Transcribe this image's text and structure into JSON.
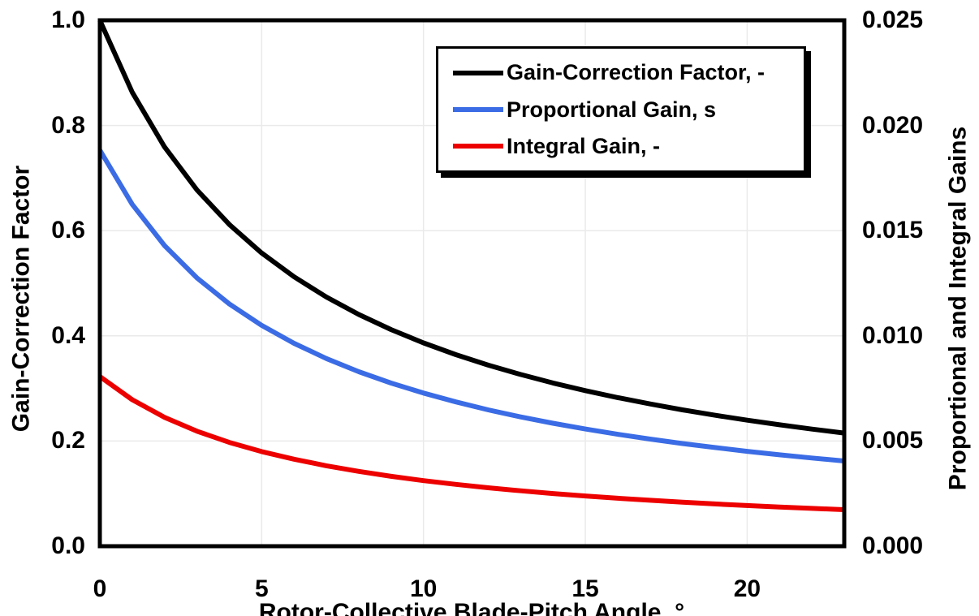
{
  "chart_data": {
    "type": "line",
    "title": "",
    "x_label": "Rotor-Collective Blade-Pitch Angle, °",
    "y_left_label": "Gain-Correction Factor",
    "y_right_label": "Proportional and Integral Gains",
    "xlim": [
      0,
      23
    ],
    "left_ylim": [
      0.0,
      1.0
    ],
    "right_ylim": [
      0.0,
      0.025
    ],
    "grid": true,
    "legend_position": "top-right",
    "x_ticks": {
      "values": [
        0,
        5,
        10,
        15,
        20
      ],
      "labels": [
        "0",
        "5",
        "10",
        "15",
        "20"
      ]
    },
    "left_ticks": {
      "values": [
        0.0,
        0.2,
        0.4,
        0.6,
        0.8,
        1.0
      ],
      "labels": [
        "0.0",
        "0.2",
        "0.4",
        "0.6",
        "0.8",
        "1.0"
      ]
    },
    "right_ticks": {
      "values": [
        0.0,
        0.005,
        0.01,
        0.015,
        0.02,
        0.025
      ],
      "labels": [
        "0.000",
        "0.005",
        "0.010",
        "0.015",
        "0.020",
        "0.025"
      ]
    },
    "x": [
      0,
      1,
      2,
      3,
      4,
      5,
      6,
      7,
      8,
      9,
      10,
      11,
      12,
      13,
      14,
      15,
      16,
      17,
      18,
      19,
      20,
      21,
      22,
      23
    ],
    "series": [
      {
        "name": "Gain-Correction Factor, -",
        "axis": "left",
        "color": "#000000",
        "values": [
          1.0,
          0.8631,
          0.7591,
          0.6775,
          0.6117,
          0.5576,
          0.5123,
          0.4738,
          0.4406,
          0.4119,
          0.3866,
          0.3642,
          0.3443,
          0.3265,
          0.3104,
          0.2958,
          0.2826,
          0.2705,
          0.2593,
          0.2491,
          0.2396,
          0.2308,
          0.2227,
          0.2151
        ]
      },
      {
        "name": "Proportional Gain, s",
        "axis": "right",
        "color": "#3B6CE5",
        "values": [
          0.018827,
          0.016249,
          0.014291,
          0.012755,
          0.011517,
          0.010498,
          0.009645,
          0.00892,
          0.008296,
          0.007754,
          0.007279,
          0.006858,
          0.006483,
          0.006147,
          0.005844,
          0.00557,
          0.00532,
          0.005092,
          0.004882,
          0.00469,
          0.004511,
          0.004346,
          0.004192,
          0.004049
        ]
      },
      {
        "name": "Integral Gain, -",
        "axis": "right",
        "color": "#ED0000",
        "values": [
          0.008069,
          0.006964,
          0.006125,
          0.005467,
          0.004936,
          0.004499,
          0.004134,
          0.003823,
          0.003556,
          0.003323,
          0.003119,
          0.002939,
          0.002778,
          0.002634,
          0.002505,
          0.002387,
          0.00228,
          0.002182,
          0.002092,
          0.00201,
          0.001933,
          0.001862,
          0.001797,
          0.001735
        ]
      }
    ],
    "style": {
      "grid_color": "#EAEAEA",
      "border_color": "#000000",
      "background": "#FFFFFF"
    }
  }
}
